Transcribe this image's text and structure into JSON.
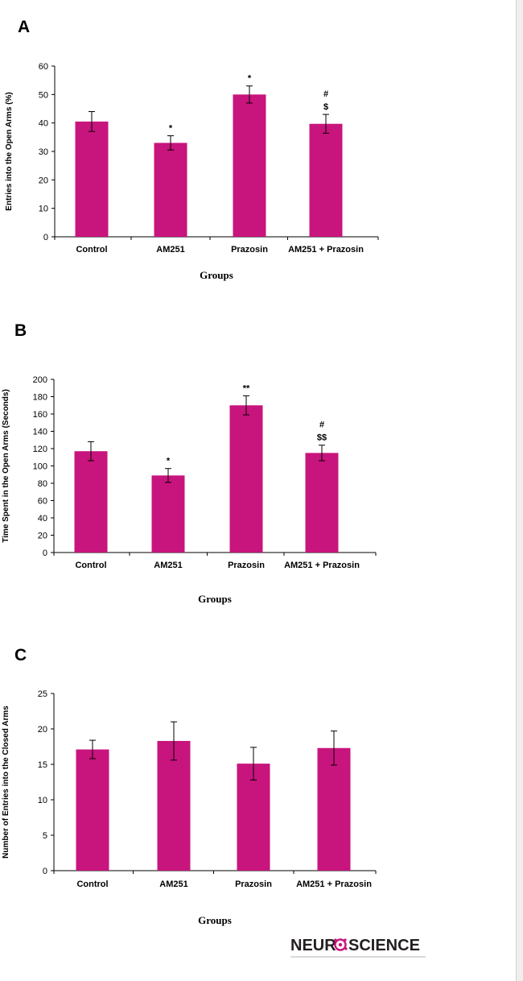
{
  "colors": {
    "bar": "#c8147d",
    "axis": "#000000",
    "logo_accent": "#c8147d",
    "logo_text": "#231f20"
  },
  "logo": {
    "part1": "NEUR",
    "part2": "SCIENCE"
  },
  "chart_data": [
    {
      "type": "bar",
      "panel_label": "A",
      "categories": [
        "Control",
        "AM251",
        "Prazosin",
        "AM251 + Prazosin"
      ],
      "values": [
        40.5,
        33,
        50,
        39.7
      ],
      "errors": [
        3.5,
        2.5,
        3,
        3.3
      ],
      "annotations": [
        [],
        [
          "*"
        ],
        [
          "*"
        ],
        [
          "$",
          "#"
        ]
      ],
      "xlabel": "Groups",
      "ylabel": "Entries into the Open Arms (%)",
      "ylim": [
        0,
        60
      ],
      "yticks": [
        0,
        10,
        20,
        30,
        40,
        50,
        60
      ],
      "grid": false,
      "legend": "none"
    },
    {
      "type": "bar",
      "panel_label": "B",
      "categories": [
        "Control",
        "AM251",
        "Prazosin",
        "AM251 + Prazosin"
      ],
      "values": [
        117,
        89,
        170,
        115
      ],
      "errors": [
        11,
        8,
        11,
        9
      ],
      "annotations": [
        [],
        [
          "*"
        ],
        [
          "**"
        ],
        [
          "$$",
          "#"
        ]
      ],
      "xlabel": "Groups",
      "ylabel": "Time Spent in the Open Arms (Seconds)",
      "ylim": [
        0,
        200
      ],
      "yticks": [
        0,
        20,
        40,
        60,
        80,
        100,
        120,
        140,
        160,
        180,
        200
      ],
      "grid": false,
      "legend": "none"
    },
    {
      "type": "bar",
      "panel_label": "C",
      "categories": [
        "Control",
        "AM251",
        "Prazosin",
        "AM251 + Prazosin"
      ],
      "values": [
        17.1,
        18.3,
        15.1,
        17.3
      ],
      "errors": [
        1.3,
        2.7,
        2.3,
        2.4
      ],
      "annotations": [
        [],
        [],
        [],
        []
      ],
      "xlabel": "Groups",
      "ylabel": "Number of Entries into the Closed Arms",
      "ylim": [
        0,
        25
      ],
      "yticks": [
        0,
        5,
        10,
        15,
        20,
        25
      ],
      "grid": false,
      "legend": "none"
    }
  ]
}
